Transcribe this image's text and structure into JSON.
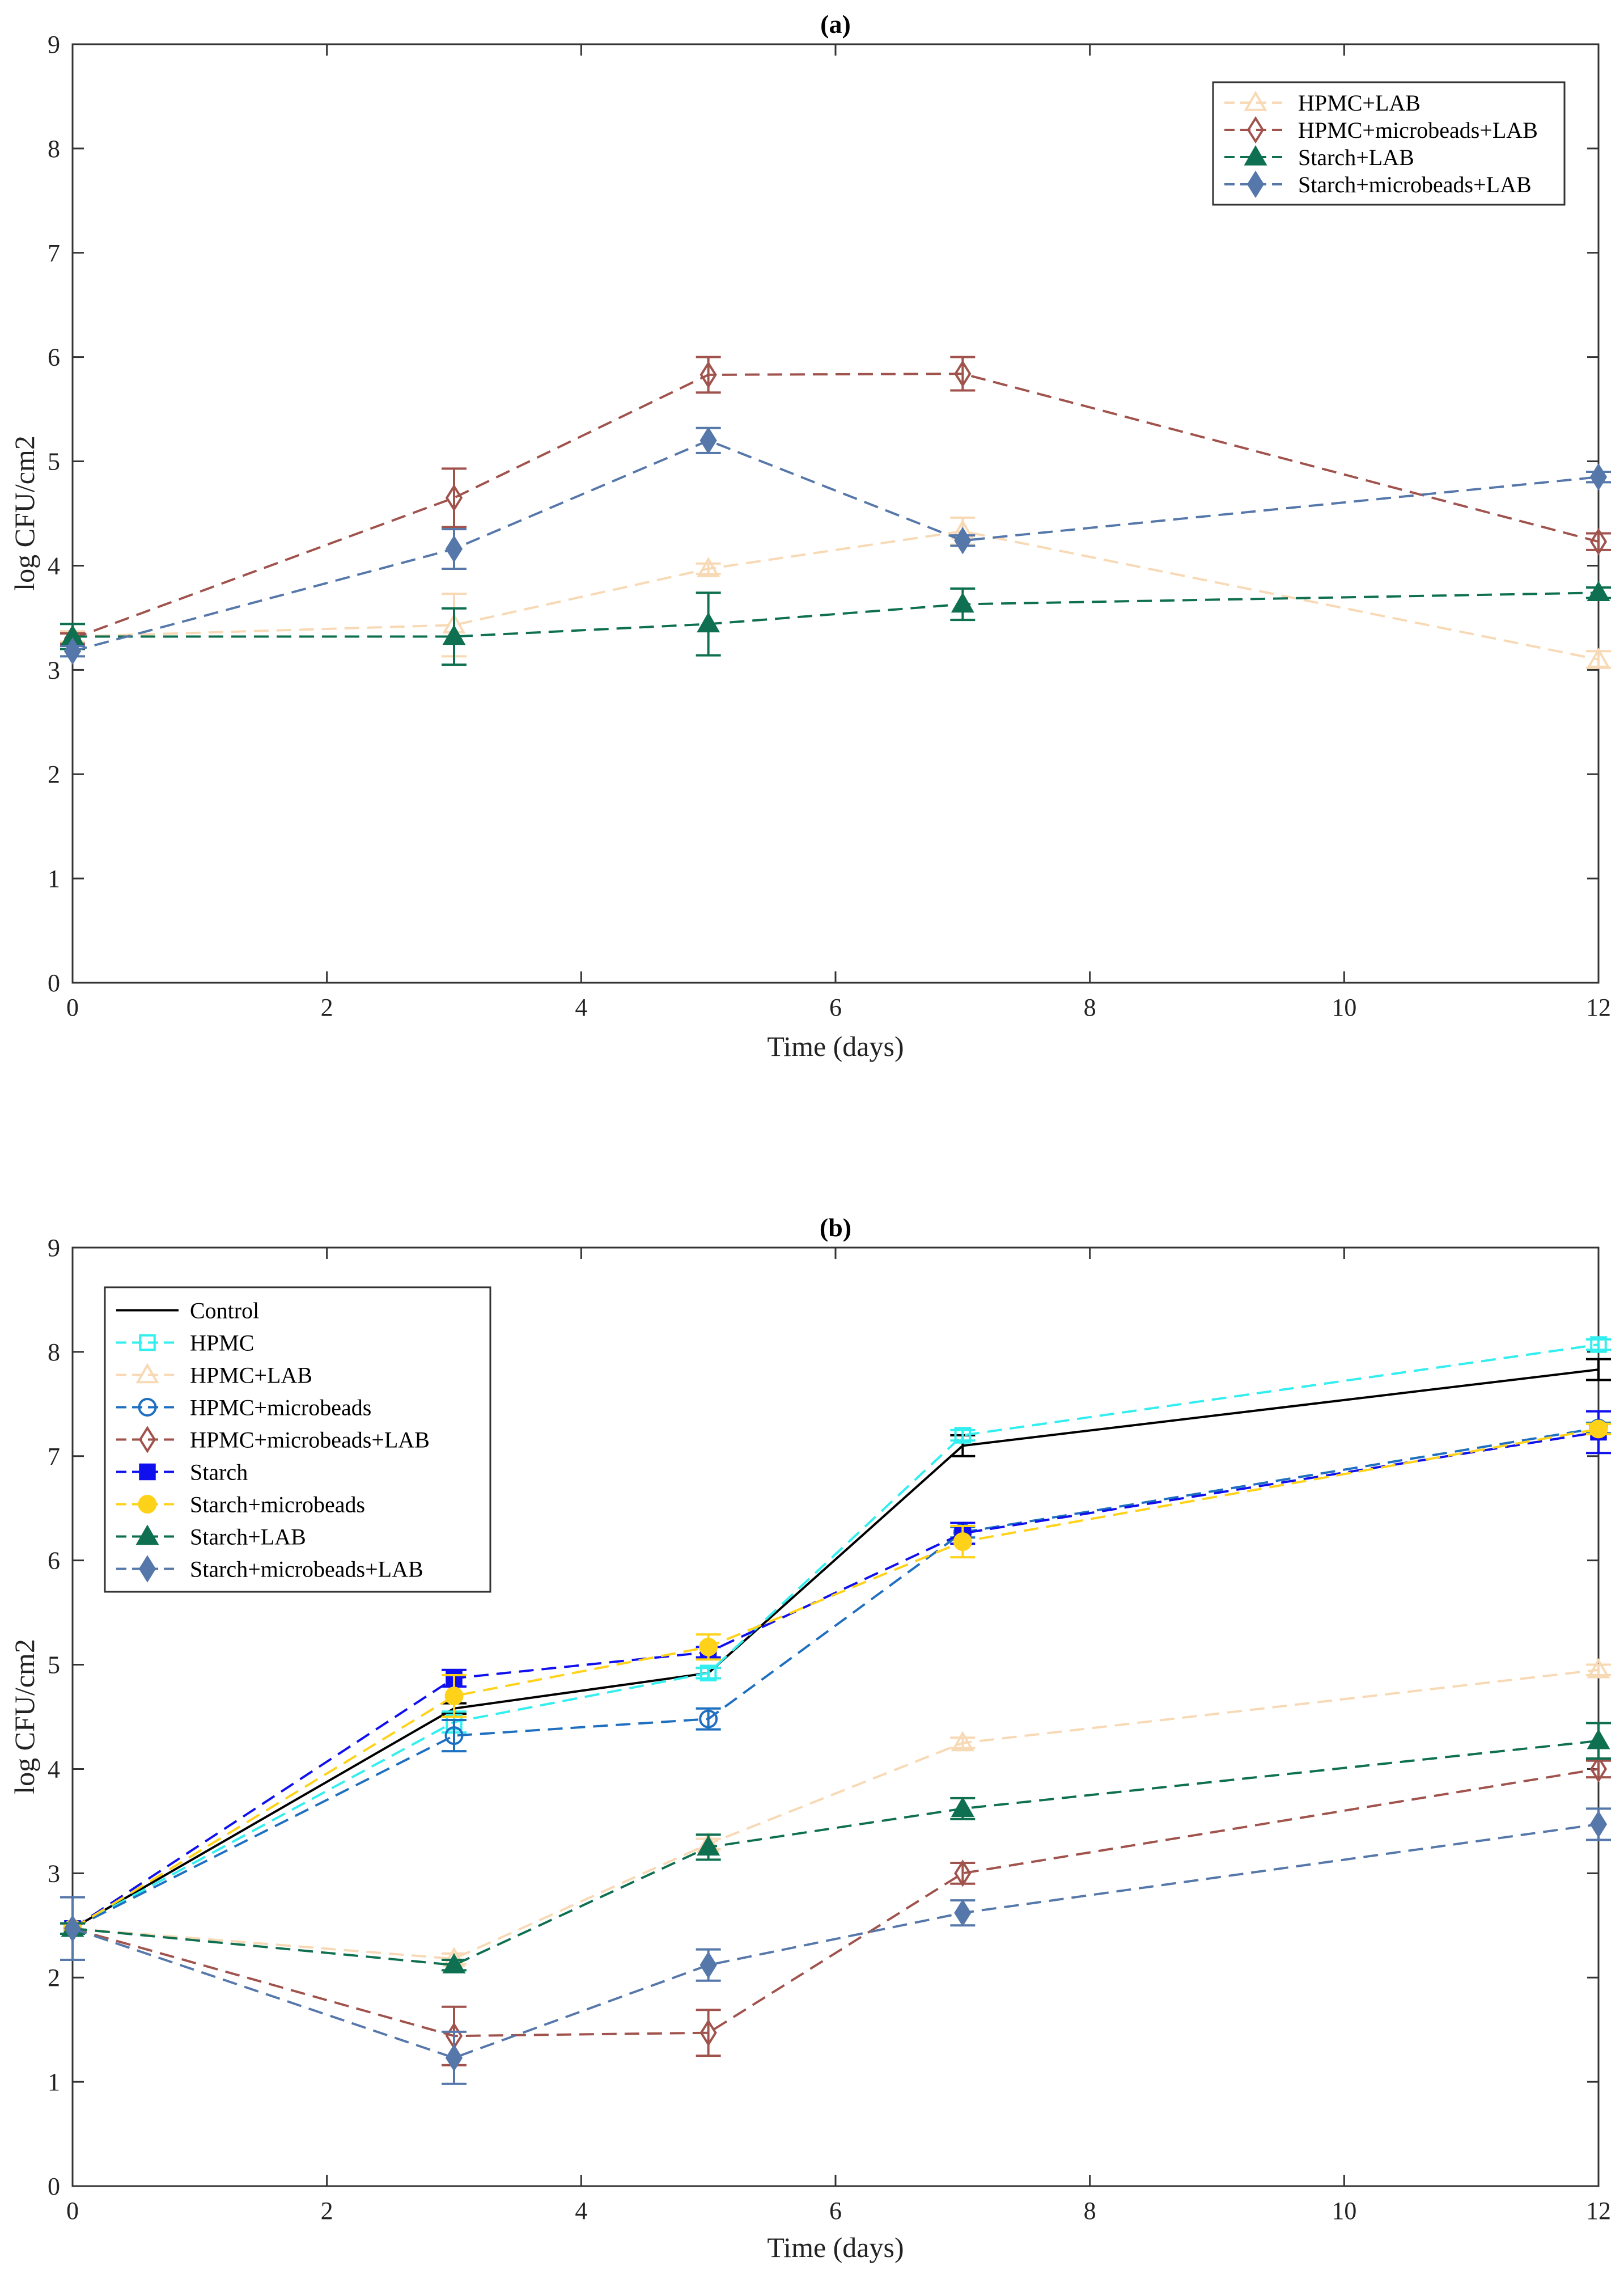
{
  "figure": {
    "series_styles": {
      "Control": {
        "color": "#000000",
        "marker": "none",
        "dash": "solid"
      },
      "HPMC": {
        "color": "#33EEEE",
        "marker": "square-open",
        "dash": "dashed"
      },
      "HPMC+LAB": {
        "color": "#F8D9B5",
        "marker": "triangle-open",
        "dash": "dashed"
      },
      "HPMC+microbeads": {
        "color": "#1E6FC0",
        "marker": "circle-open",
        "dash": "dashed"
      },
      "HPMC+microbeads+LAB": {
        "color": "#A0524C",
        "marker": "diamond-open",
        "dash": "dashed"
      },
      "Starch": {
        "color": "#1010EE",
        "marker": "square-filled",
        "dash": "dashed"
      },
      "Starch+microbeads": {
        "color": "#FFD21A",
        "marker": "circle-filled",
        "dash": "dashed"
      },
      "Starch+LAB": {
        "color": "#0E7050",
        "marker": "triangle-filled",
        "dash": "dashed"
      },
      "Starch+microbeads+LAB": {
        "color": "#5577AA",
        "marker": "diamond-filled",
        "dash": "dashed"
      }
    }
  },
  "chart_data": [
    {
      "type": "line",
      "title": "(a)",
      "xlabel": "Time (days)",
      "ylabel": "log CFU/cm2",
      "xlim": [
        0,
        12
      ],
      "ylim": [
        0,
        9
      ],
      "xticks": [
        0,
        2,
        4,
        6,
        8,
        10,
        12
      ],
      "yticks": [
        0,
        1,
        2,
        3,
        4,
        5,
        6,
        7,
        8,
        9
      ],
      "legend_position": "top-right",
      "x": [
        0,
        3,
        5,
        7,
        12
      ],
      "series": [
        {
          "name": "HPMC+LAB",
          "values": [
            3.32,
            3.43,
            3.97,
            4.33,
            3.1
          ],
          "errors": [
            0.05,
            0.3,
            0.05,
            0.13,
            0.08
          ]
        },
        {
          "name": "HPMC+microbeads+LAB",
          "values": [
            3.3,
            4.65,
            5.83,
            5.84,
            4.23
          ],
          "errors": [
            0.05,
            0.28,
            0.17,
            0.16,
            0.08
          ]
        },
        {
          "name": "Starch+LAB",
          "values": [
            3.32,
            3.32,
            3.44,
            3.63,
            3.74
          ],
          "errors": [
            0.12,
            0.27,
            0.3,
            0.15,
            0.05
          ]
        },
        {
          "name": "Starch+microbeads+LAB",
          "values": [
            3.18,
            4.16,
            5.2,
            4.24,
            4.85
          ],
          "errors": [
            0.05,
            0.19,
            0.12,
            0.05,
            0.05
          ]
        }
      ]
    },
    {
      "type": "line",
      "title": "(b)",
      "xlabel": "Time (days)",
      "ylabel": "log CFU/cm2",
      "xlim": [
        0,
        12
      ],
      "ylim": [
        0,
        9
      ],
      "xticks": [
        0,
        2,
        4,
        6,
        8,
        10,
        12
      ],
      "yticks": [
        0,
        1,
        2,
        3,
        4,
        5,
        6,
        7,
        8,
        9
      ],
      "legend_position": "top-left",
      "x": [
        0,
        3,
        5,
        7,
        12
      ],
      "series": [
        {
          "name": "Control",
          "values": [
            2.47,
            4.58,
            4.92,
            7.1,
            7.83
          ],
          "errors": [
            0.05,
            0.05,
            0.05,
            0.1,
            0.1
          ]
        },
        {
          "name": "HPMC",
          "values": [
            2.47,
            4.45,
            4.92,
            7.2,
            8.07
          ],
          "errors": [
            0.05,
            0.1,
            0.05,
            0.05,
            0.05
          ]
        },
        {
          "name": "HPMC+LAB",
          "values": [
            2.47,
            2.18,
            3.28,
            4.25,
            4.95
          ],
          "errors": [
            0.05,
            0.05,
            0.05,
            0.05,
            0.05
          ]
        },
        {
          "name": "HPMC+microbeads",
          "values": [
            2.47,
            4.32,
            4.48,
            6.27,
            7.27
          ],
          "errors": [
            0.05,
            0.15,
            0.1,
            0.05,
            0.05
          ]
        },
        {
          "name": "HPMC+microbeads+LAB",
          "values": [
            2.47,
            1.44,
            1.47,
            3.0,
            4.0
          ],
          "errors": [
            0.05,
            0.28,
            0.22,
            0.1,
            0.08
          ]
        },
        {
          "name": "Starch",
          "values": [
            2.47,
            4.87,
            5.12,
            6.26,
            7.23
          ],
          "errors": [
            0.05,
            0.08,
            0.05,
            0.1,
            0.2
          ]
        },
        {
          "name": "Starch+microbeads",
          "values": [
            2.47,
            4.7,
            5.17,
            6.18,
            7.26
          ],
          "errors": [
            0.05,
            0.2,
            0.12,
            0.15,
            0.05
          ]
        },
        {
          "name": "Starch+LAB",
          "values": [
            2.47,
            2.12,
            3.25,
            3.62,
            4.27
          ],
          "errors": [
            0.05,
            0.05,
            0.12,
            0.1,
            0.17
          ]
        },
        {
          "name": "Starch+microbeads+LAB",
          "values": [
            2.47,
            1.23,
            2.12,
            2.62,
            3.47
          ],
          "errors": [
            0.3,
            0.25,
            0.15,
            0.12,
            0.15
          ]
        }
      ]
    }
  ]
}
